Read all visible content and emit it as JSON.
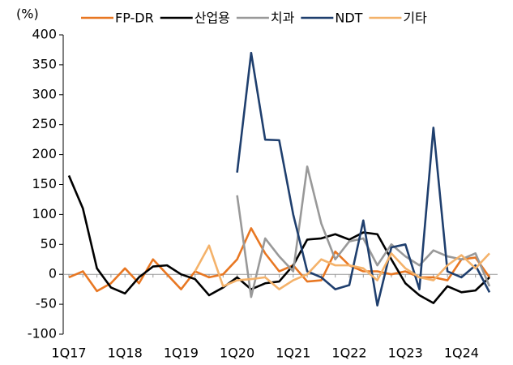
{
  "chart_data": {
    "type": "line",
    "y_label": "(%)",
    "categories": [
      "1Q17",
      null,
      null,
      null,
      "1Q18",
      null,
      null,
      null,
      "1Q19",
      null,
      null,
      null,
      "1Q20",
      null,
      null,
      null,
      "1Q21",
      null,
      null,
      null,
      "1Q22",
      null,
      null,
      null,
      "1Q23",
      null,
      null,
      null,
      "1Q24",
      null,
      null
    ],
    "series": [
      {
        "name": "FP-DR",
        "color": "#E87722",
        "values": [
          -5,
          5,
          -28,
          -15,
          10,
          -15,
          25,
          0,
          -25,
          5,
          -5,
          0,
          25,
          77,
          35,
          5,
          15,
          -12,
          -10,
          38,
          15,
          5,
          5,
          0,
          5,
          -5,
          -5,
          -10,
          25,
          28,
          -5
        ]
      },
      {
        "name": "산업용",
        "color": "#000000",
        "values": [
          165,
          110,
          10,
          -22,
          -32,
          -5,
          13,
          15,
          0,
          -8,
          -35,
          -22,
          -5,
          -25,
          -15,
          -12,
          15,
          58,
          60,
          67,
          58,
          70,
          67,
          25,
          -15,
          -35,
          -48,
          -20,
          -30,
          -27,
          -5
        ]
      },
      {
        "name": "치과",
        "color": "#999999",
        "values": [
          null,
          null,
          null,
          null,
          null,
          null,
          null,
          null,
          null,
          null,
          null,
          null,
          132,
          -38,
          60,
          30,
          5,
          180,
          85,
          25,
          55,
          60,
          15,
          50,
          30,
          15,
          40,
          30,
          25,
          35,
          -20
        ]
      },
      {
        "name": "NDT",
        "color": "#1F3F6E",
        "values": [
          null,
          null,
          null,
          null,
          null,
          null,
          null,
          null,
          null,
          null,
          null,
          null,
          170,
          370,
          225,
          224,
          100,
          5,
          -5,
          -25,
          -18,
          90,
          -52,
          45,
          50,
          -25,
          245,
          5,
          -5,
          15,
          -30
        ]
      },
      {
        "name": "기타",
        "color": "#F4B26A",
        "values": [
          null,
          null,
          null,
          null,
          null,
          null,
          null,
          null,
          null,
          5,
          48,
          -20,
          -10,
          -8,
          -5,
          -25,
          -10,
          0,
          25,
          15,
          15,
          10,
          -10,
          35,
          10,
          -5,
          -10,
          15,
          32,
          10,
          35
        ]
      }
    ],
    "ylim": [
      -100,
      400
    ],
    "yticks": [
      -100,
      -50,
      0,
      50,
      100,
      150,
      200,
      250,
      300,
      350,
      400
    ]
  }
}
